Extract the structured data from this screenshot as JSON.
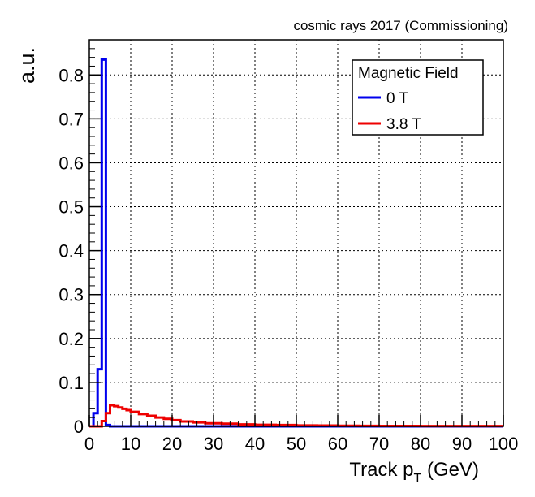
{
  "chart_data": {
    "type": "line",
    "subtitle": "cosmic rays 2017 (Commissioning)",
    "xlabel": "Track p",
    "xlabel_subscript": "T",
    "xlabel_unit": "(GeV)",
    "ylabel": "a.u.",
    "xlim": [
      0,
      100
    ],
    "ylim": [
      0,
      0.88
    ],
    "x_ticks": [
      0,
      10,
      20,
      30,
      40,
      50,
      60,
      70,
      80,
      90,
      100
    ],
    "x_tick_labels": [
      "0",
      "10",
      "20",
      "30",
      "40",
      "50",
      "60",
      "70",
      "80",
      "90",
      "100"
    ],
    "y_ticks": [
      0,
      0.1,
      0.2,
      0.3,
      0.4,
      0.5,
      0.6,
      0.7,
      0.8
    ],
    "y_tick_labels": [
      "0",
      "0.1",
      "0.2",
      "0.3",
      "0.4",
      "0.5",
      "0.6",
      "0.7",
      "0.8"
    ],
    "grid": true,
    "bin_width": 1,
    "legend": {
      "title": "Magnetic Field",
      "placement": "top-right"
    },
    "series": [
      {
        "name": "0 T",
        "color": "#0000ee",
        "bin_edges": [
          0,
          1,
          2,
          3,
          4,
          5,
          100
        ],
        "values": [
          0.0,
          0.03,
          0.13,
          0.835,
          0.003,
          0.0
        ]
      },
      {
        "name": "3.8 T",
        "color": "#ee0000",
        "bin_edges": [
          0,
          3,
          4,
          5,
          6,
          7,
          8,
          9,
          10,
          12,
          14,
          16,
          18,
          20,
          22,
          25,
          28,
          32,
          36,
          40,
          45,
          50,
          55,
          60,
          65,
          70,
          80,
          90,
          100
        ],
        "values": [
          0.0,
          0.012,
          0.03,
          0.048,
          0.046,
          0.043,
          0.04,
          0.037,
          0.033,
          0.028,
          0.024,
          0.02,
          0.017,
          0.014,
          0.011,
          0.009,
          0.007,
          0.006,
          0.0045,
          0.0035,
          0.003,
          0.002,
          0.0018,
          0.0015,
          0.0012,
          0.001,
          0.0008,
          0.0006
        ]
      }
    ]
  }
}
